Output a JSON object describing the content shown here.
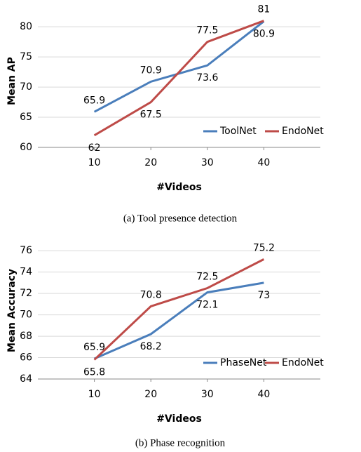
{
  "chart_data": [
    {
      "type": "line",
      "caption": "(a) Tool presence detection",
      "y_label": "Mean AP",
      "x_label": "#Videos",
      "x": [
        10,
        20,
        30,
        40
      ],
      "xlim": [
        0,
        50
      ],
      "xticks": [
        10,
        20,
        30,
        40
      ],
      "ylim": [
        60,
        82
      ],
      "yticks": [
        60,
        65,
        70,
        75,
        80
      ],
      "grid": true,
      "legend": "lower right",
      "series": [
        {
          "name": "ToolNet",
          "color": "#4a7ebb",
          "values": [
            65.9,
            70.9,
            73.6,
            80.9
          ]
        },
        {
          "name": "EndoNet",
          "color": "#be4b48",
          "values": [
            62,
            67.5,
            77.5,
            81
          ]
        }
      ]
    },
    {
      "type": "line",
      "caption": "(b) Phase recognition",
      "y_label": "Mean Accuracy",
      "x_label": "#Videos",
      "x": [
        10,
        20,
        30,
        40
      ],
      "xlim": [
        0,
        50
      ],
      "xticks": [
        10,
        20,
        30,
        40
      ],
      "ylim": [
        64,
        76.8
      ],
      "yticks": [
        64,
        66,
        68,
        70,
        72,
        74,
        76
      ],
      "grid": true,
      "legend": "lower right",
      "series": [
        {
          "name": "PhaseNet",
          "color": "#4a7ebb",
          "values": [
            65.9,
            68.2,
            72.1,
            73
          ]
        },
        {
          "name": "EndoNet",
          "color": "#be4b48",
          "values": [
            65.8,
            70.8,
            72.5,
            75.2
          ]
        }
      ]
    }
  ]
}
